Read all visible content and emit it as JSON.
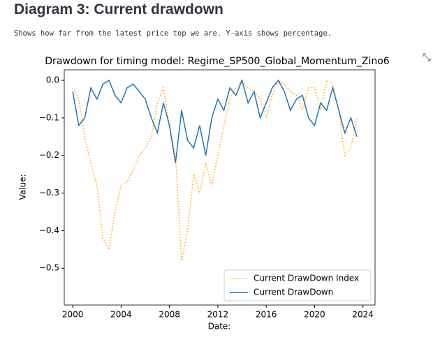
{
  "header": {
    "title": "Diagram 3: Current drawdown"
  },
  "description": "Shows how far from the latest price top we are. Y-axis shows percentage.",
  "chart_data": {
    "type": "line",
    "title": "Drawdown for timing model: Regime_SP500_Global_Momentum_Zino6",
    "x_label": "Date:",
    "y_label": "Value:",
    "x": [
      2000,
      2000.5,
      2001,
      2001.5,
      2002,
      2002.5,
      2003,
      2003.5,
      2004,
      2004.5,
      2005,
      2005.5,
      2006,
      2006.5,
      2007,
      2007.5,
      2008,
      2008.5,
      2009,
      2009.5,
      2010,
      2010.5,
      2011,
      2011.5,
      2012,
      2012.5,
      2013,
      2013.5,
      2014,
      2014.5,
      2015,
      2015.5,
      2016,
      2016.5,
      2017,
      2017.5,
      2018,
      2018.5,
      2019,
      2019.5,
      2020,
      2020.5,
      2021,
      2021.5,
      2022,
      2022.5,
      2023,
      2023.5
    ],
    "series": [
      {
        "name": "Current DrawDown Index",
        "color": "#ffa500",
        "style": "dotted",
        "values": [
          -0.02,
          -0.05,
          -0.15,
          -0.22,
          -0.28,
          -0.42,
          -0.45,
          -0.35,
          -0.28,
          -0.27,
          -0.24,
          -0.2,
          -0.18,
          -0.15,
          -0.06,
          -0.02,
          -0.12,
          -0.2,
          -0.48,
          -0.4,
          -0.25,
          -0.3,
          -0.22,
          -0.28,
          -0.2,
          -0.12,
          -0.05,
          -0.02,
          0,
          -0.02,
          -0.03,
          -0.05,
          -0.1,
          -0.04,
          0,
          -0.01,
          -0.03,
          -0.04,
          -0.08,
          -0.02,
          -0.02,
          -0.08,
          0,
          -0.01,
          -0.08,
          -0.2,
          -0.18,
          -0.1
        ]
      },
      {
        "name": "Current DrawDown",
        "color": "#1f77b4",
        "style": "solid",
        "values": [
          -0.03,
          -0.12,
          -0.1,
          -0.02,
          -0.05,
          -0.01,
          0,
          -0.04,
          -0.06,
          -0.02,
          -0.01,
          -0.03,
          -0.05,
          -0.1,
          -0.14,
          -0.06,
          -0.12,
          -0.22,
          -0.08,
          -0.16,
          -0.18,
          -0.12,
          -0.2,
          -0.1,
          -0.05,
          -0.08,
          -0.02,
          -0.04,
          0,
          -0.06,
          -0.03,
          -0.1,
          -0.06,
          -0.02,
          0,
          -0.03,
          -0.08,
          -0.05,
          -0.04,
          -0.1,
          -0.12,
          -0.06,
          -0.08,
          -0.02,
          -0.08,
          -0.14,
          -0.1,
          -0.15
        ]
      }
    ],
    "xlim": [
      1999.3,
      2025.0
    ],
    "xticks": [
      2000,
      2004,
      2008,
      2012,
      2016,
      2020,
      2024
    ],
    "ylim": [
      -0.598,
      0.028
    ],
    "yticks": [
      {
        "value": 0,
        "label": "0.0"
      },
      {
        "value": -0.1,
        "label": "−0.1"
      },
      {
        "value": -0.2,
        "label": "−0.2"
      },
      {
        "value": -0.3,
        "label": "−0.3"
      },
      {
        "value": -0.4,
        "label": "−0.4"
      },
      {
        "value": -0.5,
        "label": "−0.5"
      }
    ],
    "legend": "lower right"
  }
}
